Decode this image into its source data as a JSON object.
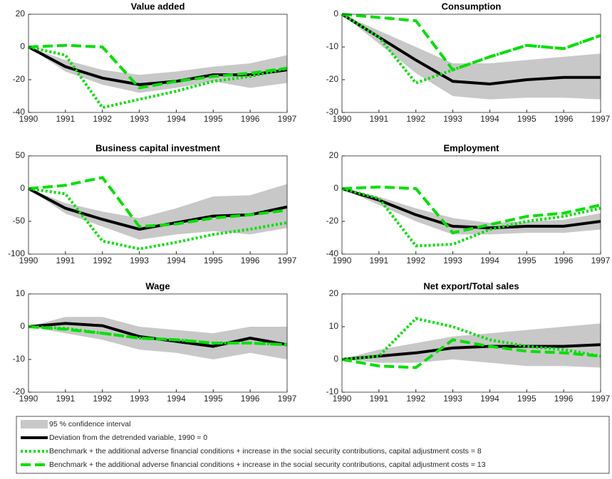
{
  "chart_data": [
    {
      "type": "line",
      "title": "Value added",
      "x": [
        1990,
        1991,
        1992,
        1993,
        1994,
        1995,
        1996,
        1997
      ],
      "xlim": [
        1990,
        1997
      ],
      "xticks": [
        1990,
        1991,
        1992,
        1993,
        1994,
        1995,
        1996,
        1997
      ],
      "ylim": [
        -40,
        20
      ],
      "yticks": [
        -40,
        -20,
        0,
        20
      ],
      "band": {
        "lower": [
          0,
          -15,
          -23,
          -28,
          -25,
          -21,
          -25,
          -22
        ],
        "upper": [
          0,
          -8,
          -14,
          -17,
          -15,
          -12,
          -10,
          -5
        ]
      },
      "series": [
        {
          "values": [
            0,
            -12,
            -19,
            -23,
            -21,
            -17,
            -17,
            -14
          ]
        },
        {
          "values": [
            0,
            -5,
            -37,
            -32,
            -27,
            -21,
            -18,
            -13
          ]
        },
        {
          "values": [
            0,
            1,
            0,
            -25,
            -21,
            -18,
            -16,
            -13
          ]
        }
      ]
    },
    {
      "type": "line",
      "title": "Consumption",
      "x": [
        1990,
        1991,
        1992,
        1993,
        1994,
        1995,
        1996,
        1997
      ],
      "xlim": [
        1990,
        1997
      ],
      "xticks": [
        1990,
        1991,
        1992,
        1993,
        1994,
        1995,
        1996,
        1997
      ],
      "ylim": [
        -30,
        0
      ],
      "yticks": [
        -30,
        -20,
        -10,
        0
      ],
      "band": {
        "lower": [
          0,
          -9,
          -18,
          -25,
          -26,
          -25.5,
          -25.5,
          -26
        ],
        "upper": [
          0,
          -5,
          -10,
          -15,
          -15,
          -14,
          -13,
          -12
        ]
      },
      "series": [
        {
          "values": [
            0,
            -7,
            -14,
            -20.5,
            -21.3,
            -20,
            -19.3,
            -19.3
          ]
        },
        {
          "values": [
            0,
            -7,
            -21,
            -17,
            -13,
            -9.5,
            -10.5,
            -6.5
          ]
        },
        {
          "values": [
            0,
            -1,
            -2,
            -17,
            -13,
            -9.5,
            -10.5,
            -6.5
          ]
        }
      ]
    },
    {
      "type": "line",
      "title": "Business capital investment",
      "x": [
        1990,
        1991,
        1992,
        1993,
        1994,
        1995,
        1996,
        1997
      ],
      "xlim": [
        1990,
        1997
      ],
      "xticks": [
        1990,
        1991,
        1992,
        1993,
        1994,
        1995,
        1996,
        1997
      ],
      "ylim": [
        -100,
        50
      ],
      "yticks": [
        -100,
        -50,
        0,
        50
      ],
      "band": {
        "lower": [
          0,
          -38,
          -58,
          -78,
          -70,
          -65,
          -70,
          -60
        ],
        "upper": [
          0,
          -22,
          -35,
          -45,
          -30,
          -12,
          -10,
          7
        ]
      },
      "series": [
        {
          "values": [
            0,
            -30,
            -47,
            -62,
            -52,
            -42,
            -40,
            -28
          ]
        },
        {
          "values": [
            0,
            -8,
            -80,
            -92,
            -82,
            -70,
            -62,
            -52
          ]
        },
        {
          "values": [
            0,
            5,
            17,
            -58,
            -54,
            -45,
            -40,
            -33
          ]
        }
      ]
    },
    {
      "type": "line",
      "title": "Employment",
      "x": [
        1990,
        1991,
        1992,
        1993,
        1994,
        1995,
        1996,
        1997
      ],
      "xlim": [
        1990,
        1997
      ],
      "xticks": [
        1990,
        1991,
        1992,
        1993,
        1994,
        1995,
        1996,
        1997
      ],
      "ylim": [
        -40,
        20
      ],
      "yticks": [
        -40,
        -20,
        0,
        20
      ],
      "band": {
        "lower": [
          0,
          -10,
          -20,
          -28,
          -28,
          -27,
          -27,
          -25
        ],
        "upper": [
          0,
          -5,
          -12,
          -18,
          -21,
          -20,
          -19,
          -15
        ]
      },
      "series": [
        {
          "values": [
            0,
            -7,
            -16,
            -23,
            -24,
            -23,
            -23,
            -20
          ]
        },
        {
          "values": [
            0,
            -6,
            -35,
            -34,
            -25,
            -20,
            -17,
            -12
          ]
        },
        {
          "values": [
            0,
            1,
            0,
            -27,
            -22,
            -17,
            -15,
            -10
          ]
        }
      ]
    },
    {
      "type": "line",
      "title": "Wage",
      "x": [
        1990,
        1991,
        1992,
        1993,
        1994,
        1995,
        1996,
        1997
      ],
      "xlim": [
        1990,
        1997
      ],
      "xticks": [
        1990,
        1991,
        1992,
        1993,
        1994,
        1995,
        1996,
        1997
      ],
      "ylim": [
        -20,
        10
      ],
      "yticks": [
        -20,
        -10,
        0,
        10
      ],
      "band": {
        "lower": [
          0,
          -2,
          -4,
          -7,
          -8,
          -10,
          -8,
          -10
        ],
        "upper": [
          0,
          3,
          3,
          0,
          -1,
          -2,
          0,
          0
        ]
      },
      "series": [
        {
          "values": [
            0,
            1,
            0.3,
            -3,
            -4.5,
            -6,
            -3.5,
            -5.5
          ]
        },
        {
          "values": [
            0,
            -0.5,
            -2,
            -3.5,
            -4,
            -5,
            -5,
            -5.5
          ]
        },
        {
          "values": [
            0,
            -0.8,
            -2,
            -3.5,
            -4,
            -5,
            -5,
            -5.5
          ]
        }
      ]
    },
    {
      "type": "line",
      "title": "Net export/Total sales",
      "x": [
        1990,
        1991,
        1992,
        1993,
        1994,
        1995,
        1996,
        1997
      ],
      "xlim": [
        1990,
        1997
      ],
      "xticks": [
        1990,
        1991,
        1992,
        1993,
        1994,
        1995,
        1996,
        1997
      ],
      "ylim": [
        -10,
        20
      ],
      "yticks": [
        -10,
        0,
        10,
        20
      ],
      "band": {
        "lower": [
          0,
          -1,
          -1,
          0,
          -1,
          -2,
          -2,
          -2.5
        ],
        "upper": [
          0,
          3,
          5,
          7,
          8,
          9,
          10,
          11
        ]
      },
      "series": [
        {
          "values": [
            0,
            1,
            2,
            3.5,
            4,
            4,
            4,
            4.5
          ]
        },
        {
          "values": [
            0,
            1,
            12.5,
            10,
            6,
            4,
            3,
            1
          ]
        },
        {
          "values": [
            0,
            -2,
            -2.5,
            6,
            4,
            2.5,
            2,
            1
          ]
        }
      ]
    }
  ],
  "legend": [
    {
      "label": "95 % confidence interval",
      "color": "#c8c8c8"
    },
    {
      "label": "Deviation from the detrended variable, 1990 = 0",
      "color": "#000000"
    },
    {
      "label": "Benchmark + the additional adverse financial conditions + increase in the social security contributions, capital adjustment costs = 8",
      "color": "#00e000",
      "dash": "dotted"
    },
    {
      "label": "Benchmark + the additional adverse financial conditions + increase in the social security contributions, capital adjustment costs = 13",
      "color": "#00e000",
      "dash": "dashed"
    }
  ]
}
